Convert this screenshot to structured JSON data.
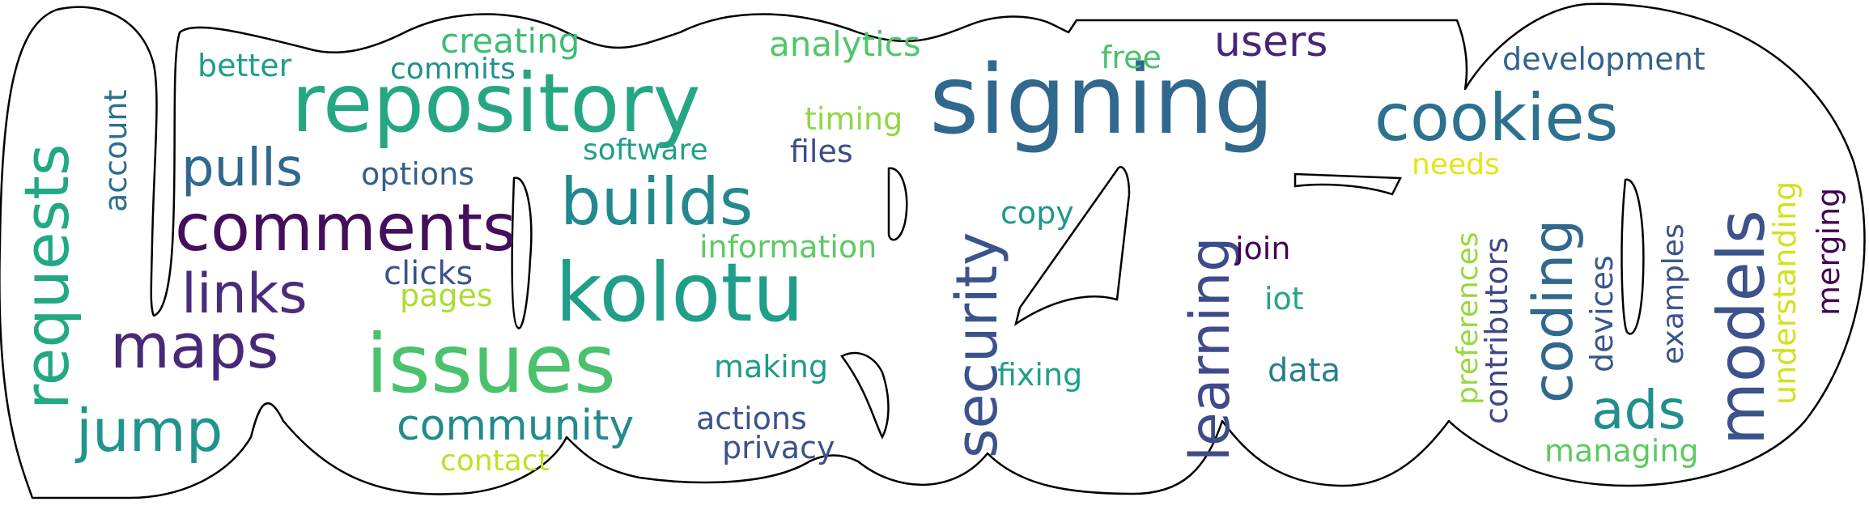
{
  "colors": {
    "outline": "#000000",
    "background": "#ffffff"
  },
  "words": [
    {
      "text": "signing",
      "color": "#30688e"
    },
    {
      "text": "repository",
      "color": "#26a784"
    },
    {
      "text": "kolotu",
      "color": "#1f9e89"
    },
    {
      "text": "issues",
      "color": "#4ac16d"
    },
    {
      "text": "comments",
      "color": "#450e5c"
    },
    {
      "text": "cookies",
      "color": "#2c718e"
    },
    {
      "text": "builds",
      "color": "#23898e"
    },
    {
      "text": "models",
      "color": "#3b528b"
    },
    {
      "text": "requests",
      "color": "#22a884"
    },
    {
      "text": "maps",
      "color": "#482878"
    },
    {
      "text": "links",
      "color": "#472d7b"
    },
    {
      "text": "jump",
      "color": "#1f958b"
    },
    {
      "text": "pulls",
      "color": "#31688e"
    },
    {
      "text": "security",
      "color": "#3b528b"
    },
    {
      "text": "learning",
      "color": "#3e4a89"
    },
    {
      "text": "coding",
      "color": "#31688e"
    },
    {
      "text": "ads",
      "color": "#218f8d"
    },
    {
      "text": "community",
      "color": "#238a8d"
    },
    {
      "text": "users",
      "color": "#482576"
    },
    {
      "text": "analytics",
      "color": "#52c569"
    },
    {
      "text": "creating",
      "color": "#3dbc74"
    },
    {
      "text": "commits",
      "color": "#21918c"
    },
    {
      "text": "better",
      "color": "#1f9e89"
    },
    {
      "text": "account",
      "color": "#2e6f8e"
    },
    {
      "text": "options",
      "color": "#355f8d"
    },
    {
      "text": "software",
      "color": "#1fa088"
    },
    {
      "text": "timing",
      "color": "#8fd744"
    },
    {
      "text": "files",
      "color": "#3e4a89"
    },
    {
      "text": "information",
      "color": "#5ec962"
    },
    {
      "text": "clicks",
      "color": "#3b528b"
    },
    {
      "text": "pages",
      "color": "#addc30"
    },
    {
      "text": "making",
      "color": "#1e9b8a"
    },
    {
      "text": "actions",
      "color": "#3b528b"
    },
    {
      "text": "privacy",
      "color": "#3b518b"
    },
    {
      "text": "contact",
      "color": "#c2df23"
    },
    {
      "text": "copy",
      "color": "#1f988b"
    },
    {
      "text": "fixing",
      "color": "#1fa187"
    },
    {
      "text": "free",
      "color": "#4ac16d"
    },
    {
      "text": "join",
      "color": "#440154"
    },
    {
      "text": "iot",
      "color": "#22a785"
    },
    {
      "text": "data",
      "color": "#277f8e"
    },
    {
      "text": "development",
      "color": "#33638d"
    },
    {
      "text": "needs",
      "color": "#e5e419"
    },
    {
      "text": "preferences",
      "color": "#98d83e"
    },
    {
      "text": "contributors",
      "color": "#3f4788"
    },
    {
      "text": "devices",
      "color": "#39568c"
    },
    {
      "text": "examples",
      "color": "#3b528b"
    },
    {
      "text": "understanding",
      "color": "#d2e21b"
    },
    {
      "text": "merging",
      "color": "#440154"
    },
    {
      "text": "managing",
      "color": "#5ec962"
    }
  ]
}
